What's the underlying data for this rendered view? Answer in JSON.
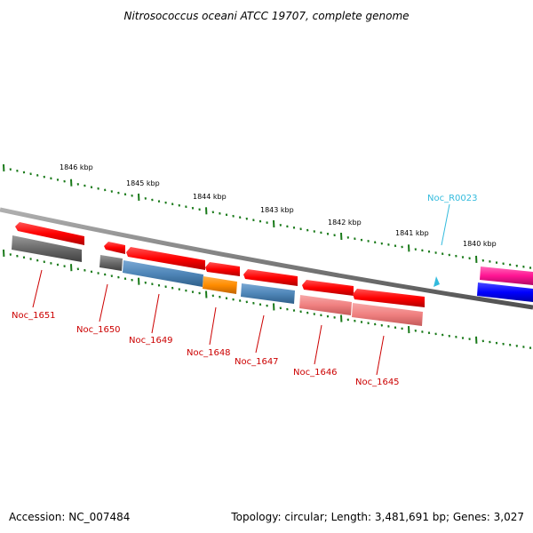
{
  "title": "Nitrosococcus oceani ATCC 19707, complete genome",
  "footer": {
    "accession": "Accession: NC_007484",
    "summary": "Topology: circular; Length: 3,481,691 bp; Genes: 3,027"
  },
  "colors": {
    "backbone": "#8a8a8a",
    "ticks": "#1a7a1a",
    "forward_cds": "#ff0000",
    "reverse_cds": "#ff0000",
    "gene_label": "#cc0000",
    "rna_label": "#33bbdd",
    "cog_gray": "#707070",
    "cog_steel_blue": "#4f86b8",
    "cog_orange": "#ff8c00",
    "cog_salmon": "#f08080",
    "cog_magenta": "#ff1493",
    "cog_blue": "#0000ff",
    "trna": "#33bbdd"
  },
  "kbp_ticks": [
    "1846 kbp",
    "1845 kbp",
    "1844 kbp",
    "1843 kbp",
    "1842 kbp",
    "1841 kbp",
    "1840 kbp"
  ],
  "genes": [
    "Noc_1651",
    "Noc_1650",
    "Noc_1649",
    "Noc_1648",
    "Noc_1647",
    "Noc_1646",
    "Noc_1645"
  ],
  "rna": [
    "Noc_R0023"
  ]
}
